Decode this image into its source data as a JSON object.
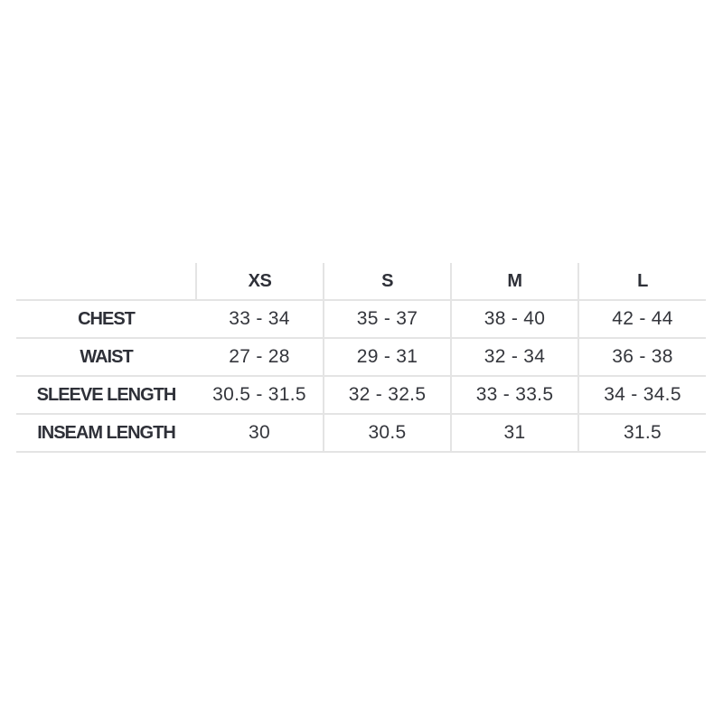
{
  "size_chart": {
    "columns": [
      "",
      "XS",
      "S",
      "M",
      "L"
    ],
    "rows": [
      {
        "label": "CHEST",
        "values": [
          "33 - 34",
          "35 - 37",
          "38 - 40",
          "42 - 44"
        ]
      },
      {
        "label": "WAIST",
        "values": [
          "27 - 28",
          "29 - 31",
          "32 - 34",
          "36 - 38"
        ]
      },
      {
        "label": "SLEEVE LENGTH",
        "values": [
          "30.5 - 31.5",
          "32 - 32.5",
          "33 - 33.5",
          "34 - 34.5"
        ]
      },
      {
        "label": "INSEAM LENGTH",
        "values": [
          "30",
          "30.5",
          "31",
          "31.5"
        ]
      }
    ]
  }
}
